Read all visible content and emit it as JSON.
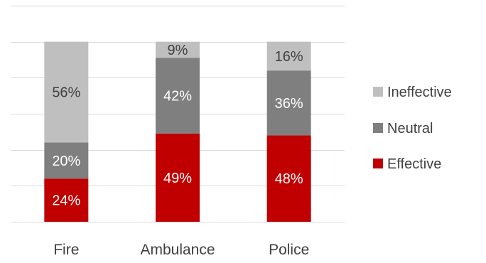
{
  "chart_data": {
    "type": "bar",
    "stacked": true,
    "categories": [
      "Fire",
      "Ambulance",
      "Police"
    ],
    "series": [
      {
        "name": "Effective",
        "values": [
          24,
          49,
          48
        ],
        "labels": [
          "24%",
          "49%",
          "48%"
        ],
        "color": "#c00000",
        "label_color": "#ffffff"
      },
      {
        "name": "Neutral",
        "values": [
          20,
          42,
          36
        ],
        "labels": [
          "20%",
          "42%",
          "36%"
        ],
        "color": "#7f7f7f",
        "label_color": "#ffffff"
      },
      {
        "name": "Ineffective",
        "values": [
          56,
          9,
          16
        ],
        "labels": [
          "56%",
          "9%",
          "16%"
        ],
        "color": "#bfbfbf",
        "label_color": "#404040"
      }
    ],
    "legend": {
      "position": "right",
      "order": [
        "Ineffective",
        "Neutral",
        "Effective"
      ]
    },
    "ylim": [
      0,
      120
    ],
    "y_grid_step": 20,
    "grid": true,
    "gridline_color": "#d9d9d9",
    "axis_text_color": "#404040"
  }
}
